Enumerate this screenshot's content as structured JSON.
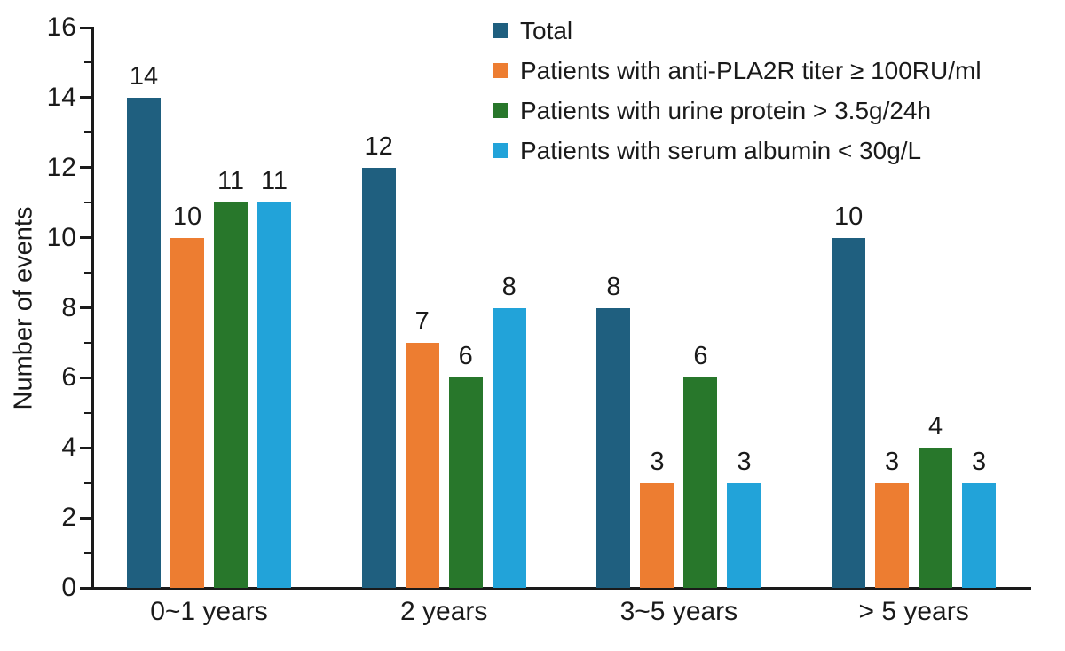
{
  "chart_data": {
    "type": "bar",
    "title": "",
    "xlabel": "",
    "ylabel": "Number of events",
    "ylim": [
      0,
      16
    ],
    "ytick_step": 2,
    "minor_tick_step": 1,
    "grid": false,
    "legend_position": "top-right",
    "categories": [
      "0~1 years",
      "2 years",
      "3~5 years",
      "> 5 years"
    ],
    "series": [
      {
        "name": "Total",
        "color": "#1f5f7f",
        "values": [
          14,
          12,
          8,
          10
        ]
      },
      {
        "name": "Patients with anti-PLA2R titer ≥ 100RU/ml",
        "color": "#ed7d31",
        "values": [
          10,
          7,
          3,
          3
        ]
      },
      {
        "name": "Patients with urine protein > 3.5g/24h",
        "color": "#28772b",
        "values": [
          11,
          6,
          6,
          4
        ]
      },
      {
        "name": "Patients with serum albumin < 30g/L",
        "color": "#22a3d9",
        "values": [
          11,
          8,
          3,
          3
        ]
      }
    ],
    "bar_value_labels_shown": true
  },
  "colors": {
    "axis": "#1a1a1a",
    "text": "#1a1a1a",
    "background": "#ffffff"
  }
}
